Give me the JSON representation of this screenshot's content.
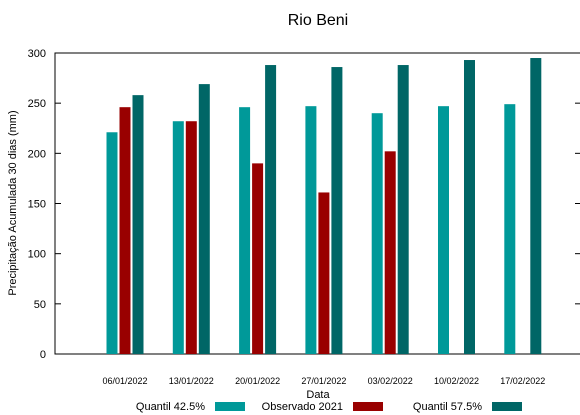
{
  "chart_data": {
    "type": "bar",
    "title": "Rio Beni",
    "xlabel": "Data",
    "ylabel": "Precipitação Acumulada 30 dias (mm)",
    "ylim": [
      0,
      300
    ],
    "yticks": [
      0,
      50,
      100,
      150,
      200,
      250,
      300
    ],
    "categories": [
      "06/01/2022",
      "13/01/2022",
      "20/01/2022",
      "27/01/2022",
      "03/02/2022",
      "10/02/2022",
      "17/02/2022"
    ],
    "series": [
      {
        "name": "Quantil 42.5%",
        "color": "#009999",
        "values": [
          221,
          232,
          246,
          247,
          240,
          247,
          249
        ]
      },
      {
        "name": "Observado 2021",
        "color": "#990000",
        "values": [
          246,
          232,
          190,
          161,
          202,
          null,
          null
        ]
      },
      {
        "name": "Quantil 57.5%",
        "color": "#006666",
        "values": [
          258,
          269,
          288,
          286,
          288,
          293,
          295
        ]
      }
    ],
    "grid": false,
    "legend_position": "bottom"
  }
}
